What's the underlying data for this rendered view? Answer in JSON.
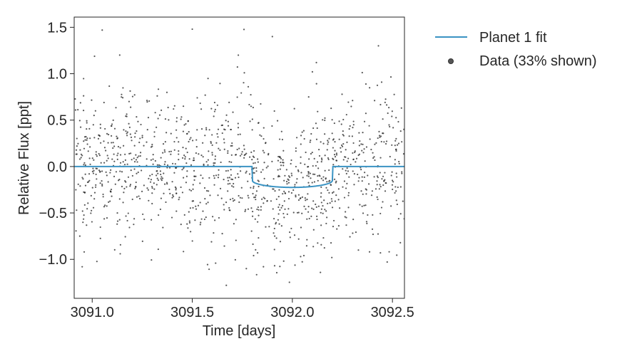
{
  "chart_data": {
    "type": "scatter",
    "xlabel": "Time [days]",
    "ylabel": "Relative Flux [ppt]",
    "xlim": [
      3090.91,
      3092.56
    ],
    "ylim": [
      -1.42,
      1.61
    ],
    "x_ticks": [
      3091.0,
      3091.5,
      3092.0,
      3092.5
    ],
    "x_tick_labels": [
      "3091.0",
      "3091.5",
      "3092.0",
      "3092.5"
    ],
    "y_ticks": [
      -1.0,
      -0.5,
      0.0,
      0.5,
      1.0,
      1.5
    ],
    "y_tick_labels": [
      "−1.0",
      "−0.5",
      "0.0",
      "0.5",
      "1.0",
      "1.5"
    ],
    "grid": false,
    "legend_position": "outside-top-right",
    "series": [
      {
        "name": "Planet 1 fit",
        "kind": "line",
        "color": "#3a93c3",
        "transit": {
          "ingress": 3091.8,
          "egress": 3092.2,
          "center": 3092.0,
          "depth": -0.225,
          "edge_depth": -0.15
        }
      },
      {
        "name": "Data (33% shown)",
        "kind": "scatter",
        "color": "#222222",
        "n_points": 1250,
        "noise_sigma": 0.4,
        "seed": 17,
        "outliers": [
          [
            3091.05,
            1.47
          ],
          [
            3091.5,
            1.48
          ],
          [
            3091.9,
            1.4
          ],
          [
            3091.76,
            1.01
          ],
          [
            3092.12,
            1.12
          ],
          [
            3092.43,
            1.3
          ],
          [
            3090.95,
            -1.08
          ],
          [
            3091.77,
            -1.1
          ],
          [
            3091.67,
            -1.28
          ],
          [
            3090.96,
            -0.92
          ],
          [
            3092.44,
            -0.93
          ],
          [
            3092.33,
            -0.9
          ],
          [
            3092.1,
            1.02
          ],
          [
            3091.73,
            1.2
          ],
          [
            3091.14,
            -0.94
          ]
        ]
      }
    ]
  }
}
